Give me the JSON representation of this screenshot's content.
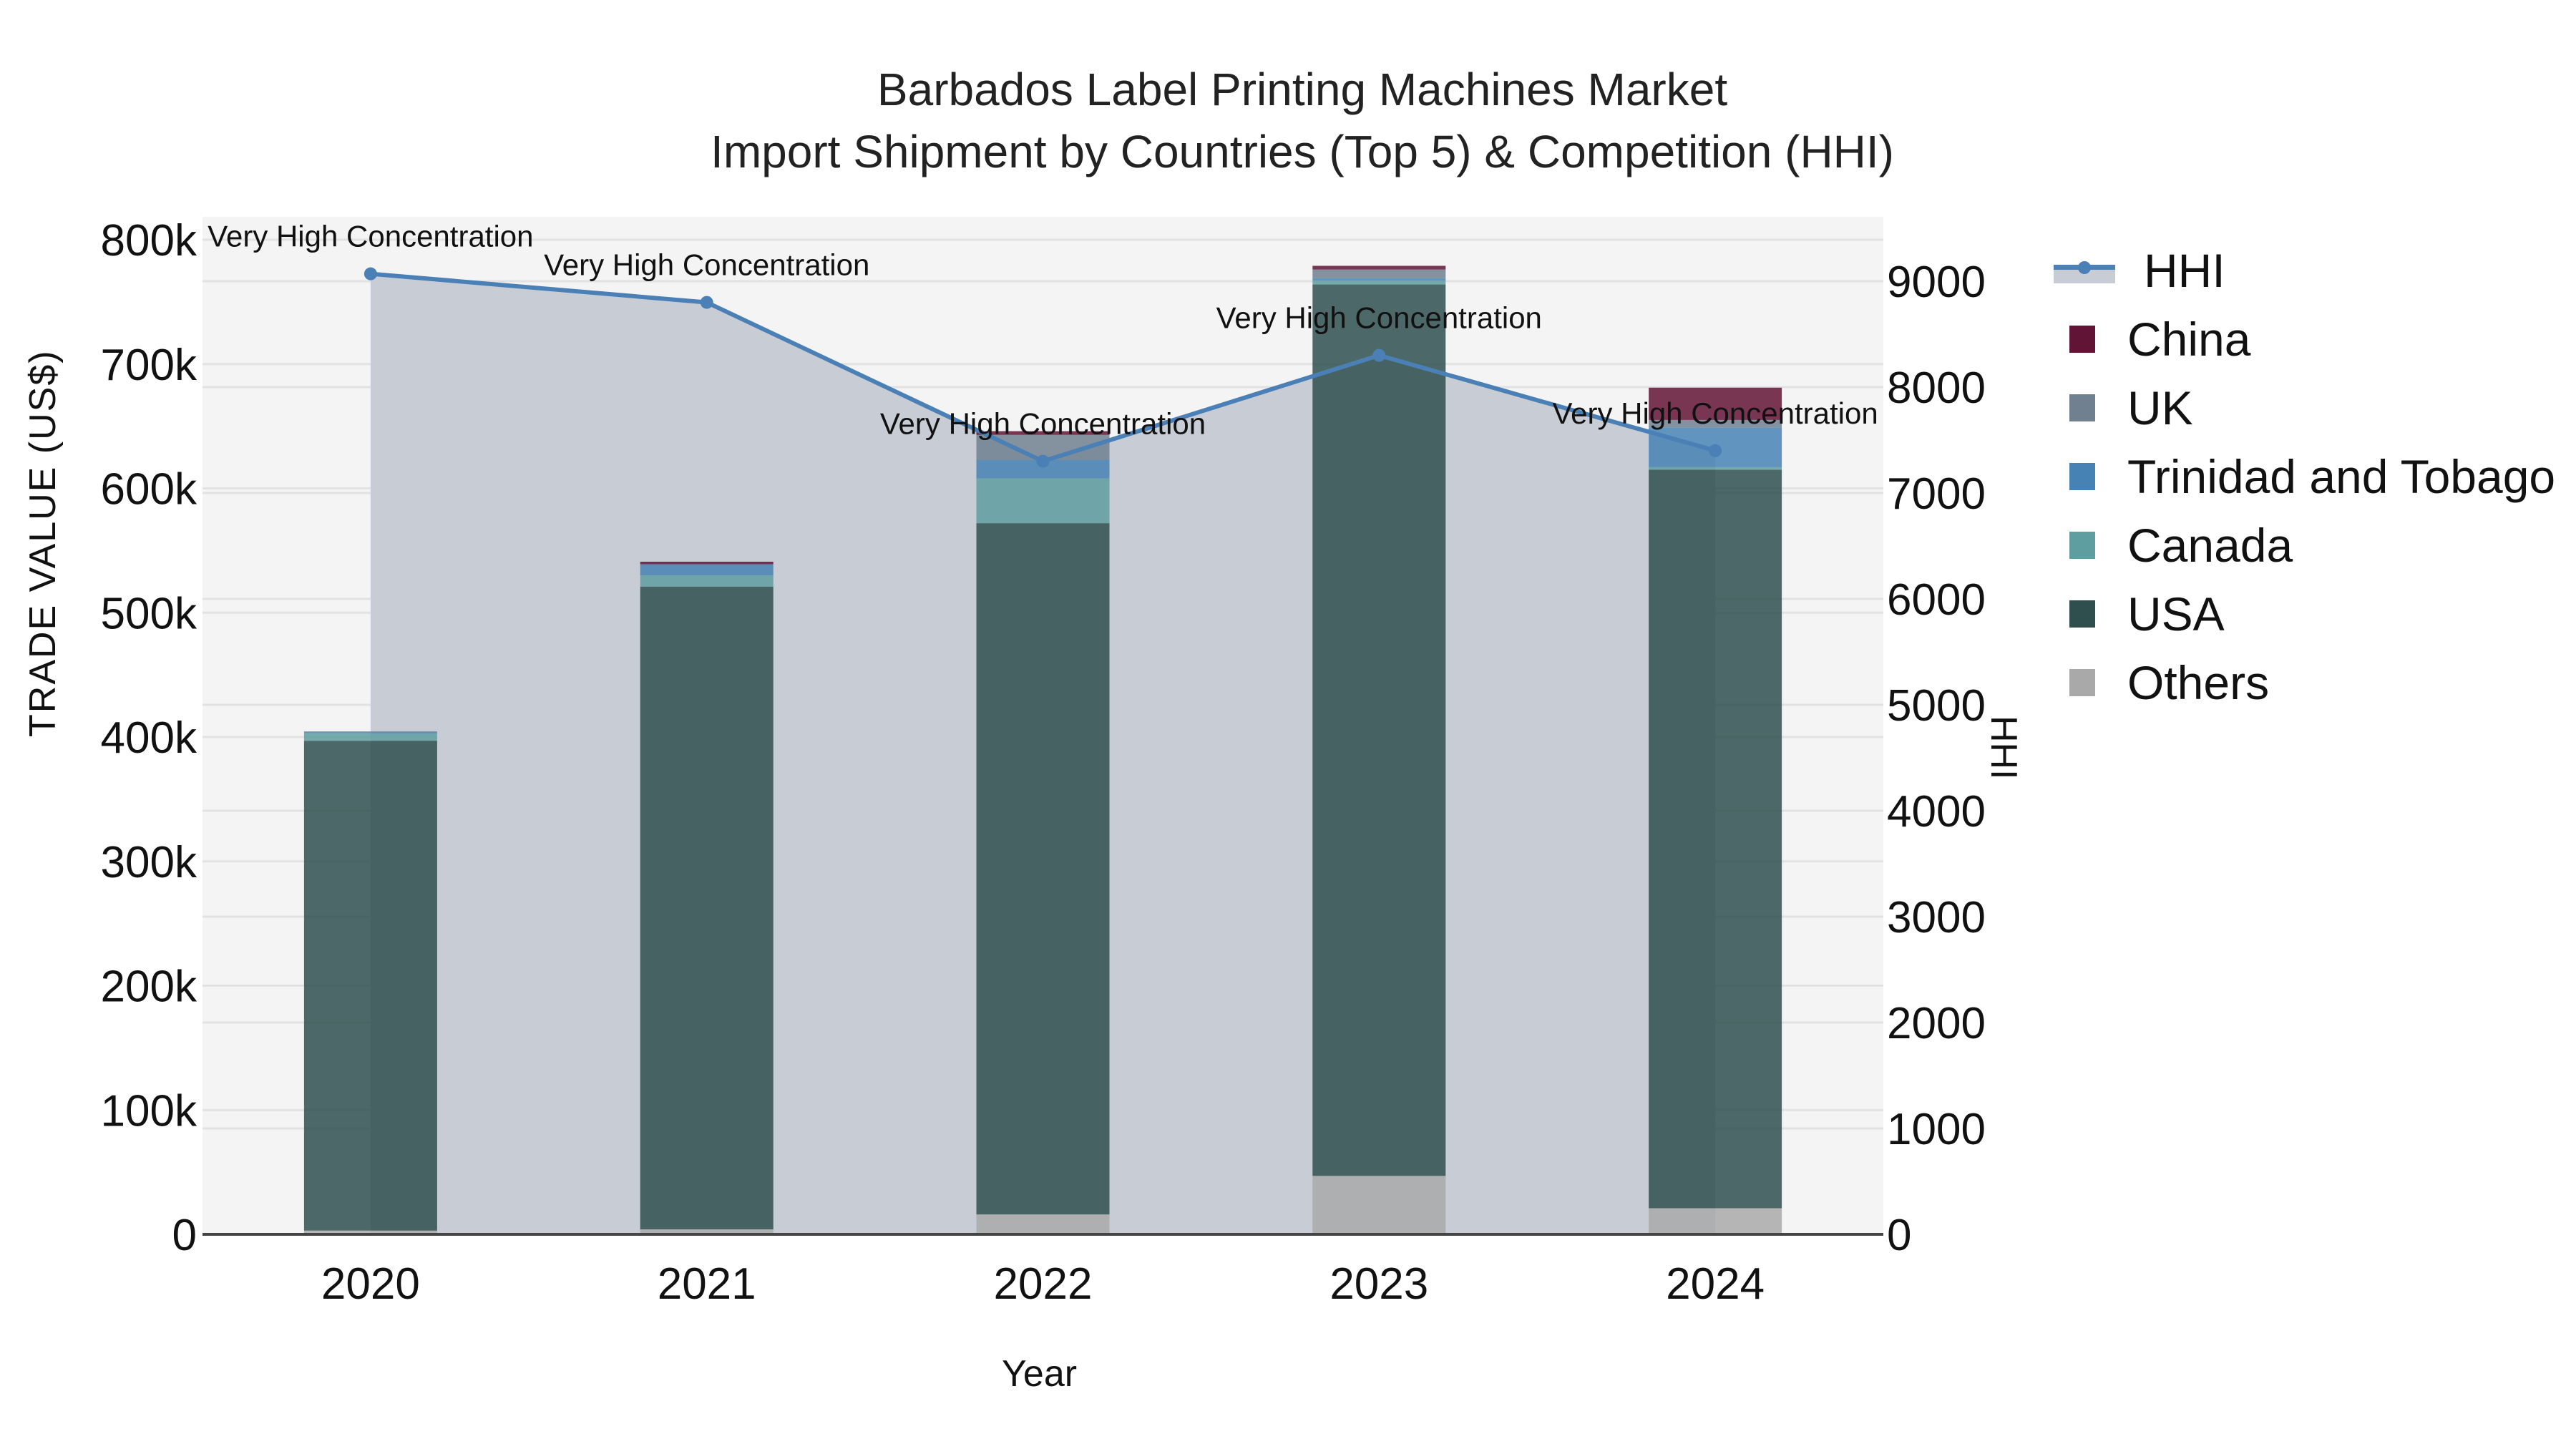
{
  "title": {
    "line1": "Barbados Label Printing Machines Market",
    "line2": "Import Shipment by Countries (Top 5) & Competition (HHI)"
  },
  "axes": {
    "y_left_title": "TRADE VALUE (US$)",
    "y_right_title": "HHI",
    "x_title": "Year",
    "y_left_ticks": [
      "0",
      "100k",
      "200k",
      "300k",
      "400k",
      "500k",
      "600k",
      "700k",
      "800k"
    ],
    "y_right_ticks": [
      "0",
      "1000",
      "2000",
      "3000",
      "4000",
      "5000",
      "6000",
      "7000",
      "8000",
      "9000"
    ],
    "x_ticks": [
      "2020",
      "2021",
      "2022",
      "2023",
      "2024"
    ]
  },
  "legend": [
    {
      "name": "HHI",
      "type": "line",
      "color": "#4a80b5"
    },
    {
      "name": "China",
      "type": "bar",
      "color": "#621436"
    },
    {
      "name": "UK",
      "type": "bar",
      "color": "#708090"
    },
    {
      "name": "Trinidad and Tobago",
      "type": "bar",
      "color": "#4682b4"
    },
    {
      "name": "Canada",
      "type": "bar",
      "color": "#5f9ea0"
    },
    {
      "name": "USA",
      "type": "bar",
      "color": "#2f4f4f"
    },
    {
      "name": "Others",
      "type": "bar",
      "color": "#a9a9a9"
    }
  ],
  "annotations": [
    "Very High Concentration",
    "Very High Concentration",
    "Very High Concentration",
    "Very High Concentration",
    "Very High Concentration"
  ],
  "chart_data": {
    "type": "bar",
    "subtype": "stacked bar + line (dual axis)",
    "title": "Barbados Label Printing Machines Market — Import Shipment by Countries (Top 5) & Competition (HHI)",
    "categories": [
      "2020",
      "2021",
      "2022",
      "2023",
      "2024"
    ],
    "xlabel": "Year",
    "ylabel": "TRADE VALUE (US$)",
    "y2label": "HHI",
    "ylim": [
      0,
      820000
    ],
    "y2lim": [
      0,
      9600
    ],
    "series": [
      {
        "name": "Others",
        "color": "#a9a9a9",
        "values": [
          3000,
          4000,
          16000,
          47000,
          21000
        ]
      },
      {
        "name": "USA",
        "color": "#2f4f4f",
        "values": [
          394000,
          517000,
          556000,
          717000,
          594000
        ]
      },
      {
        "name": "Canada",
        "color": "#5f9ea0",
        "values": [
          6000,
          9000,
          36000,
          3000,
          2000
        ]
      },
      {
        "name": "Trinidad and Tobago",
        "color": "#4682b4",
        "values": [
          1000,
          9000,
          15000,
          2000,
          32000
        ]
      },
      {
        "name": "UK",
        "color": "#708090",
        "values": [
          500,
          0,
          20000,
          7000,
          6000
        ]
      },
      {
        "name": "China",
        "color": "#621436",
        "values": [
          0,
          2000,
          3000,
          3000,
          26000
        ]
      }
    ],
    "line_series": {
      "name": "HHI",
      "axis": "right",
      "color": "#4a80b5",
      "values": [
        9070,
        8800,
        7300,
        8300,
        7400
      ]
    },
    "annotations": [
      "Very High Concentration",
      "Very High Concentration",
      "Very High Concentration",
      "Very High Concentration",
      "Very High Concentration"
    ],
    "grid": true,
    "legend_position": "right"
  }
}
